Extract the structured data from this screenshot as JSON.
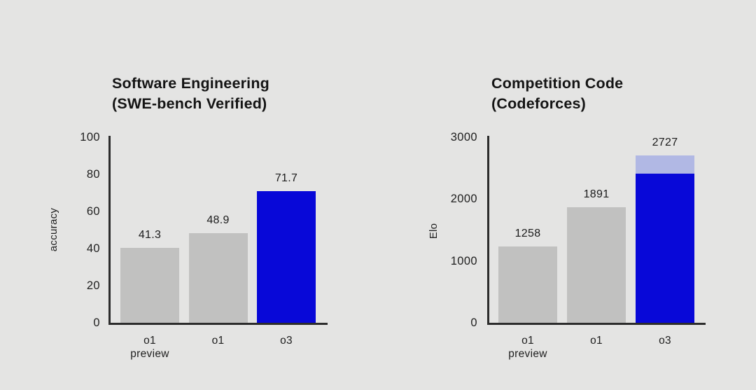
{
  "page": {
    "background_color": "#e4e4e3",
    "text_color": "#1e1e1e",
    "axis_color": "#2c2c2c"
  },
  "colors": {
    "bar_gray": "#c1c1c0",
    "bar_blue": "#0808d8",
    "bar_blue_light": "#b1b8e4"
  },
  "chart_data": [
    {
      "type": "bar",
      "title_lines": [
        "Software Engineering",
        "(SWE-bench Verified)"
      ],
      "ylabel": "accuracy",
      "categories": [
        "o1\npreview",
        "o1",
        "o3"
      ],
      "values": [
        41.3,
        48.9,
        71.7
      ],
      "value_labels": [
        "41.3",
        "48.9",
        "71.7"
      ],
      "bar_colors": [
        "gray",
        "gray",
        "blue"
      ],
      "ylim": [
        0,
        100
      ],
      "yticks": [
        0,
        20,
        40,
        60,
        80,
        100
      ],
      "grid": false,
      "legend": "none"
    },
    {
      "type": "bar",
      "title_lines": [
        "Competition Code",
        "(Codeforces)"
      ],
      "ylabel": "Elo",
      "categories": [
        "o1\npreview",
        "o1",
        "o3"
      ],
      "values": [
        1258,
        1891,
        2727
      ],
      "value_labels": [
        "1258",
        "1891",
        "2727"
      ],
      "bar_colors": [
        "gray",
        "gray",
        "blue"
      ],
      "highlight_segment": {
        "bar_index": 2,
        "solid_value": 2430,
        "total_value": 2727
      },
      "ylim": [
        0,
        3000
      ],
      "yticks": [
        0,
        1000,
        2000,
        3000
      ],
      "grid": false,
      "legend": "none"
    }
  ]
}
